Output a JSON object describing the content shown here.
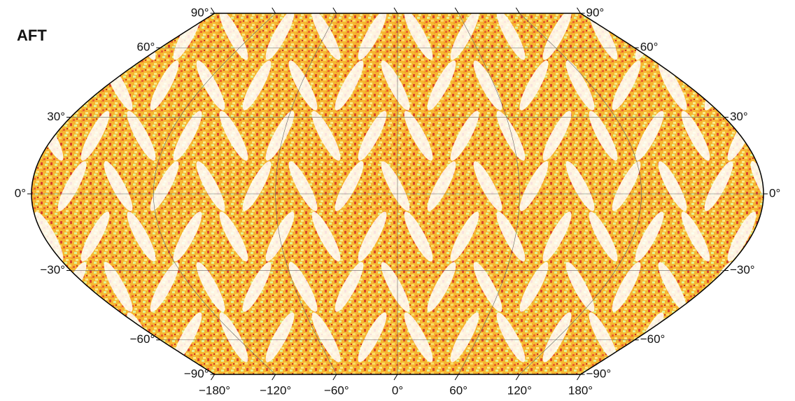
{
  "title": "AFT",
  "parallels": [
    {
      "value": 90,
      "label": "90°"
    },
    {
      "value": 60,
      "label": "60°"
    },
    {
      "value": 30,
      "label": "30°"
    },
    {
      "value": 0,
      "label": "0°"
    },
    {
      "value": -30,
      "label": "−30°"
    },
    {
      "value": -60,
      "label": "−60°"
    },
    {
      "value": -90,
      "label": "−90°"
    }
  ],
  "meridians": [
    {
      "value": -180,
      "label": "−180°"
    },
    {
      "value": -120,
      "label": "−120°"
    },
    {
      "value": -60,
      "label": "−60°"
    },
    {
      "value": 0,
      "label": "0°"
    },
    {
      "value": 60,
      "label": "60°"
    },
    {
      "value": 120,
      "label": "120°"
    },
    {
      "value": 180,
      "label": "180°"
    }
  ]
}
